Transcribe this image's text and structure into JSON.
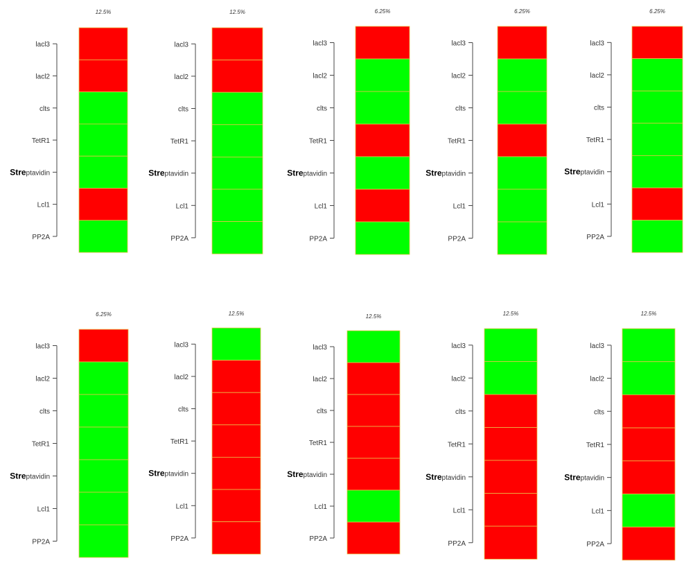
{
  "colors": {
    "on": "#00ff00",
    "off": "#ff0000",
    "cell_border": "#e8c24a",
    "axis": "#444444",
    "text": "#333333"
  },
  "row_labels": [
    {
      "bold": "",
      "rest": "lacl3"
    },
    {
      "bold": "",
      "rest": "lacl2"
    },
    {
      "bold": "",
      "rest": "clts"
    },
    {
      "bold": "",
      "rest": "TetR1"
    },
    {
      "bold": "Stre",
      "rest": "ptavidin"
    },
    {
      "bold": "",
      "rest": "Lcl1"
    },
    {
      "bold": "",
      "rest": "PP2A"
    }
  ],
  "chart_data": [
    {
      "type": "heatmap",
      "title": "12.5%",
      "rows": [
        "lacl3",
        "lacl2",
        "clts",
        "TetR1",
        "Streptavidin",
        "Lcl1",
        "PP2A"
      ],
      "values": [
        0,
        0,
        1,
        1,
        1,
        0,
        1
      ]
    },
    {
      "type": "heatmap",
      "title": "12.5%",
      "rows": [
        "lacl3",
        "lacl2",
        "clts",
        "TetR1",
        "Streptavidin",
        "Lcl1",
        "PP2A"
      ],
      "values": [
        0,
        0,
        1,
        1,
        1,
        1,
        1
      ]
    },
    {
      "type": "heatmap",
      "title": "6.25%",
      "rows": [
        "lacl3",
        "lacl2",
        "clts",
        "TetR1",
        "Streptavidin",
        "Lcl1",
        "PP2A"
      ],
      "values": [
        0,
        1,
        1,
        0,
        1,
        0,
        1
      ]
    },
    {
      "type": "heatmap",
      "title": "6.25%",
      "rows": [
        "lacl3",
        "lacl2",
        "clts",
        "TetR1",
        "Streptavidin",
        "Lcl1",
        "PP2A"
      ],
      "values": [
        0,
        1,
        1,
        0,
        1,
        1,
        1
      ]
    },
    {
      "type": "heatmap",
      "title": "6.25%",
      "rows": [
        "lacl3",
        "lacl2",
        "clts",
        "TetR1",
        "Streptavidin",
        "Lcl1",
        "PP2A"
      ],
      "values": [
        0,
        1,
        1,
        1,
        1,
        0,
        1
      ]
    },
    {
      "type": "heatmap",
      "title": "6.25%",
      "rows": [
        "lacl3",
        "lacl2",
        "clts",
        "TetR1",
        "Streptavidin",
        "Lcl1",
        "PP2A"
      ],
      "values": [
        0,
        1,
        1,
        1,
        1,
        1,
        1
      ]
    },
    {
      "type": "heatmap",
      "title": "12.5%",
      "rows": [
        "lacl3",
        "lacl2",
        "clts",
        "TetR1",
        "Streptavidin",
        "Lcl1",
        "PP2A"
      ],
      "values": [
        1,
        0,
        0,
        0,
        0,
        0,
        0
      ]
    },
    {
      "type": "heatmap",
      "title": "12.5%",
      "rows": [
        "lacl3",
        "lacl2",
        "clts",
        "TetR1",
        "Streptavidin",
        "Lcl1",
        "PP2A"
      ],
      "values": [
        1,
        0,
        0,
        0,
        0,
        1,
        0
      ]
    },
    {
      "type": "heatmap",
      "title": "12.5%",
      "rows": [
        "lacl3",
        "lacl2",
        "clts",
        "TetR1",
        "Streptavidin",
        "Lcl1",
        "PP2A"
      ],
      "values": [
        1,
        1,
        0,
        0,
        0,
        0,
        0
      ]
    },
    {
      "type": "heatmap",
      "title": "12.5%",
      "rows": [
        "lacl3",
        "lacl2",
        "clts",
        "TetR1",
        "Streptavidin",
        "Lcl1",
        "PP2A"
      ],
      "values": [
        1,
        1,
        0,
        0,
        0,
        1,
        0
      ]
    }
  ]
}
